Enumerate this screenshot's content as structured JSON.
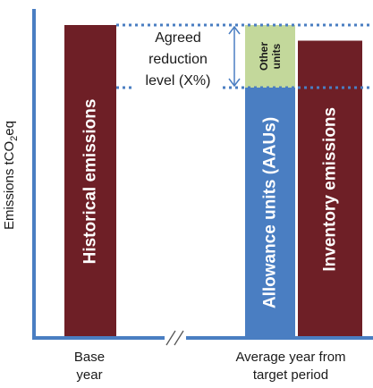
{
  "chart_data": {
    "type": "bar",
    "title": "",
    "ylabel_main": "Emissions tCO",
    "ylabel_sub": "2",
    "ylabel_tail": "eq",
    "categories": [
      {
        "lines": [
          "Base",
          "year"
        ]
      },
      {
        "lines": [
          "Average year from",
          "target period"
        ]
      }
    ],
    "axis_break": "//",
    "bars": [
      {
        "name": "bar-historical-emissions",
        "label": "Historical emissions",
        "bottom": 0,
        "top": 100,
        "color": "#6e1f26",
        "label_color": "#ffffff"
      },
      {
        "name": "bar-allowance-units",
        "label": "Allowance units (AAUs)",
        "bottom": 0,
        "top": 80,
        "color": "#4a7ec2",
        "label_color": "#ffffff"
      },
      {
        "name": "bar-other-units",
        "label_lines": [
          "Other",
          "units"
        ],
        "bottom": 80,
        "top": 100,
        "color": "#c3d89b",
        "label_color": "#1a1a1a"
      },
      {
        "name": "bar-inventory-emissions",
        "label": "Inventory  emissions",
        "bottom": 0,
        "top": 95,
        "color": "#6e1f26",
        "label_color": "#ffffff"
      }
    ],
    "reference_lines": [
      {
        "name": "agreed-level-top-line",
        "y": 100,
        "color": "#4a7ec2"
      },
      {
        "name": "agreed-level-bottom-line",
        "y": 80,
        "color": "#4a7ec2"
      }
    ],
    "annotation": {
      "lines": [
        "Agreed",
        "reduction",
        "level (X%)"
      ],
      "from": 100,
      "to": 80
    },
    "colors": {
      "axis": "#4a7ec2",
      "text": "#1a1a1a"
    }
  }
}
